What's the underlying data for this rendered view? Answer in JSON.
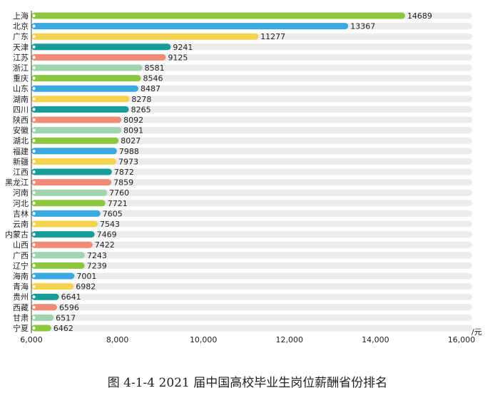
{
  "chart_data": {
    "type": "bar",
    "orientation": "horizontal",
    "title": "图 4-1-4  2021 届中国高校毕业生岗位薪酬省份排名",
    "unit": "/元",
    "xlim": [
      6000,
      16000
    ],
    "x_ticks": [
      "6,000",
      "8,000",
      "10,000",
      "12,000",
      "14,000",
      "16,000"
    ],
    "x_tick_values": [
      6000,
      8000,
      10000,
      12000,
      14000,
      16000
    ],
    "categories": [
      "上海",
      "北京",
      "广东",
      "天津",
      "江苏",
      "浙江",
      "重庆",
      "山东",
      "湖南",
      "四川",
      "陕西",
      "安徽",
      "湖北",
      "福建",
      "新疆",
      "江西",
      "黑龙江",
      "河南",
      "河北",
      "吉林",
      "云南",
      "内蒙古",
      "山西",
      "广西",
      "辽宁",
      "海南",
      "青海",
      "贵州",
      "西藏",
      "甘肃",
      "宁夏"
    ],
    "values": [
      14689,
      13367,
      11277,
      9241,
      9125,
      8581,
      8546,
      8487,
      8278,
      8265,
      8092,
      8091,
      8027,
      7988,
      7973,
      7872,
      7859,
      7760,
      7721,
      7605,
      7543,
      7469,
      7422,
      7243,
      7239,
      7001,
      6982,
      6641,
      6596,
      6517,
      6462
    ],
    "value_labels": [
      "14689",
      "13367",
      "11277",
      "9241",
      "9125",
      "8581",
      "8546",
      "8487",
      "8278",
      "8265",
      "8092",
      "8091",
      "8027",
      "7988",
      "7973",
      "7872",
      "7859",
      "7760",
      "7721",
      "7605",
      "7543",
      "7469",
      "7422",
      "7243",
      "7239",
      "7001",
      "6982",
      "6641",
      "6596",
      "6517",
      "6462"
    ],
    "bar_colors": [
      "#8dc63f",
      "#3aa9e0",
      "#f5d34f",
      "#179c9a",
      "#ef8b76",
      "#9fd4ae",
      "#8dc63f",
      "#3aa9e0",
      "#f5d34f",
      "#179c9a",
      "#ef8b76",
      "#9fd4ae",
      "#8dc63f",
      "#3aa9e0",
      "#f5d34f",
      "#179c9a",
      "#ef8b76",
      "#9fd4ae",
      "#8dc63f",
      "#3aa9e0",
      "#f5d34f",
      "#179c9a",
      "#ef8b76",
      "#9fd4ae",
      "#8dc63f",
      "#3aa9e0",
      "#f5d34f",
      "#179c9a",
      "#ef8b76",
      "#9fd4ae",
      "#8dc63f"
    ],
    "track_color": "#ececec"
  }
}
